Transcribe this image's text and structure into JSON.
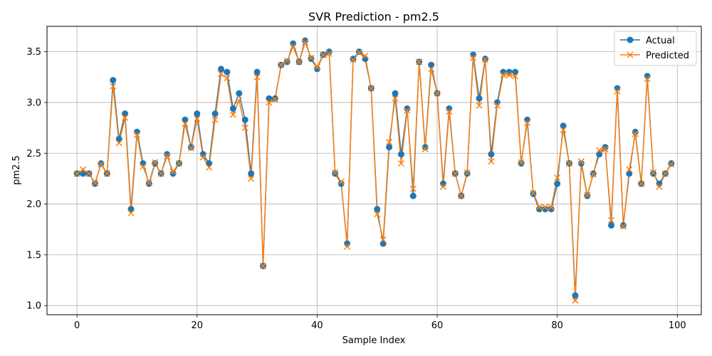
{
  "chart_data": {
    "type": "line",
    "title": "SVR Prediction - pm2.5",
    "xlabel": "Sample Index",
    "ylabel": "pm2.5",
    "xlim": [
      -5,
      104
    ],
    "ylim": [
      0.91,
      3.75
    ],
    "xticks": [
      0,
      20,
      40,
      60,
      80,
      100
    ],
    "yticks": [
      1.0,
      1.5,
      2.0,
      2.5,
      3.0,
      3.5
    ],
    "xtick_labels": [
      "0",
      "20",
      "40",
      "60",
      "80",
      "100"
    ],
    "ytick_labels": [
      "1.0",
      "1.5",
      "2.0",
      "2.5",
      "3.0",
      "3.5"
    ],
    "grid": true,
    "legend_position": "top-right",
    "x": [
      0,
      1,
      2,
      3,
      4,
      5,
      6,
      7,
      8,
      9,
      10,
      11,
      12,
      13,
      14,
      15,
      16,
      17,
      18,
      19,
      20,
      21,
      22,
      23,
      24,
      25,
      26,
      27,
      28,
      29,
      30,
      31,
      32,
      33,
      34,
      35,
      36,
      37,
      38,
      39,
      40,
      41,
      42,
      43,
      44,
      45,
      46,
      47,
      48,
      49,
      50,
      51,
      52,
      53,
      54,
      55,
      56,
      57,
      58,
      59,
      60,
      61,
      62,
      63,
      64,
      65,
      66,
      67,
      68,
      69,
      70,
      71,
      72,
      73,
      74,
      75,
      76,
      77,
      78,
      79,
      80,
      81,
      82,
      83,
      84,
      85,
      86,
      87,
      88,
      89,
      90,
      91,
      92,
      93,
      94,
      95,
      96,
      97,
      98,
      99
    ],
    "series": [
      {
        "name": "Actual",
        "color": "#1f77b4",
        "marker": "circle",
        "values": [
          2.3,
          2.3,
          2.3,
          2.2,
          2.4,
          2.3,
          3.22,
          2.64,
          2.89,
          1.95,
          2.71,
          2.4,
          2.2,
          2.4,
          2.3,
          2.49,
          2.3,
          2.4,
          2.83,
          2.56,
          2.89,
          2.49,
          2.4,
          2.89,
          3.33,
          3.3,
          2.94,
          3.09,
          2.83,
          2.3,
          3.3,
          1.39,
          3.04,
          3.04,
          3.37,
          3.4,
          3.58,
          3.4,
          3.61,
          3.43,
          3.33,
          3.47,
          3.5,
          2.3,
          2.2,
          1.61,
          3.43,
          3.5,
          3.43,
          3.14,
          1.95,
          1.61,
          2.56,
          3.09,
          2.49,
          2.94,
          2.08,
          3.4,
          2.56,
          3.37,
          3.09,
          2.2,
          2.94,
          2.3,
          2.08,
          2.3,
          3.47,
          3.04,
          3.43,
          2.49,
          3.0,
          3.3,
          3.3,
          3.3,
          2.4,
          2.83,
          2.1,
          1.95,
          1.95,
          1.95,
          2.2,
          2.77,
          2.4,
          1.1,
          2.4,
          2.08,
          2.3,
          2.49,
          2.56,
          1.79,
          3.14,
          1.79,
          2.3,
          2.71,
          2.2,
          3.26,
          2.3,
          2.2,
          2.3,
          2.4
        ]
      },
      {
        "name": "Predicted",
        "color": "#ff7f0e",
        "marker": "x",
        "values": [
          2.3,
          2.34,
          2.3,
          2.21,
          2.39,
          2.3,
          3.16,
          2.6,
          2.85,
          1.91,
          2.68,
          2.37,
          2.21,
          2.41,
          2.3,
          2.47,
          2.32,
          2.4,
          2.79,
          2.55,
          2.84,
          2.46,
          2.36,
          2.83,
          3.28,
          3.24,
          2.88,
          3.02,
          2.75,
          2.25,
          3.25,
          1.39,
          3.0,
          3.03,
          3.37,
          3.41,
          3.55,
          3.4,
          3.59,
          3.44,
          3.35,
          3.47,
          3.48,
          2.31,
          2.22,
          1.58,
          3.42,
          3.49,
          3.46,
          3.14,
          1.9,
          1.65,
          2.61,
          3.04,
          2.4,
          2.92,
          2.15,
          3.4,
          2.54,
          3.33,
          3.09,
          2.17,
          2.91,
          2.3,
          2.08,
          2.31,
          3.44,
          2.97,
          3.42,
          2.42,
          2.97,
          3.27,
          3.27,
          3.26,
          2.41,
          2.8,
          2.11,
          1.97,
          1.97,
          1.97,
          2.26,
          2.73,
          2.4,
          1.05,
          2.42,
          2.09,
          2.29,
          2.53,
          2.54,
          1.84,
          3.11,
          1.78,
          2.34,
          2.69,
          2.2,
          3.23,
          2.31,
          2.17,
          2.3,
          2.39
        ]
      }
    ]
  }
}
